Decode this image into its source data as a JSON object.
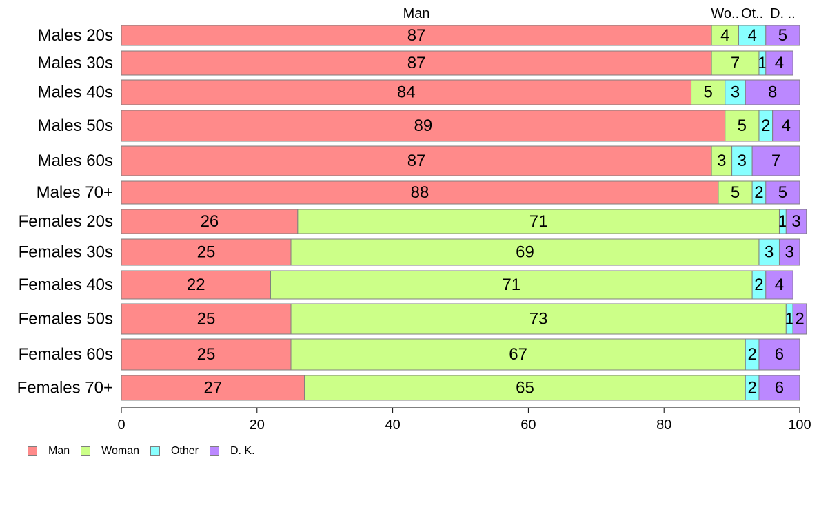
{
  "chart_data": {
    "type": "bar",
    "orientation": "horizontal",
    "stacked": true,
    "categories": [
      "Males 20s",
      "Males 30s",
      "Males 40s",
      "Males 50s",
      "Males 60s",
      "Males 70+",
      "Females 20s",
      "Females 30s",
      "Females 40s",
      "Females 50s",
      "Females 60s",
      "Females 70+"
    ],
    "series": [
      {
        "name": "Man",
        "color": "#ff8a8a",
        "values": [
          87,
          87,
          84,
          89,
          87,
          88,
          26,
          25,
          22,
          25,
          25,
          27
        ]
      },
      {
        "name": "Woman",
        "color": "#ccff88",
        "values": [
          4,
          7,
          5,
          5,
          3,
          5,
          71,
          69,
          71,
          73,
          67,
          65
        ]
      },
      {
        "name": "Other",
        "color": "#88ffff",
        "values": [
          4,
          1,
          3,
          2,
          3,
          2,
          1,
          3,
          2,
          1,
          2,
          2
        ]
      },
      {
        "name": "D. K.",
        "color": "#bb88ff",
        "values": [
          5,
          4,
          8,
          4,
          7,
          5,
          3,
          3,
          4,
          2,
          6,
          6
        ]
      }
    ],
    "top_labels": [
      "Man",
      "Wo..",
      "Ot..",
      "D. .."
    ],
    "xlim": [
      0,
      100
    ],
    "xticks": [
      "0",
      "20",
      "40",
      "60",
      "80",
      "100"
    ],
    "legend_position": "bottom-left",
    "grid": false
  }
}
